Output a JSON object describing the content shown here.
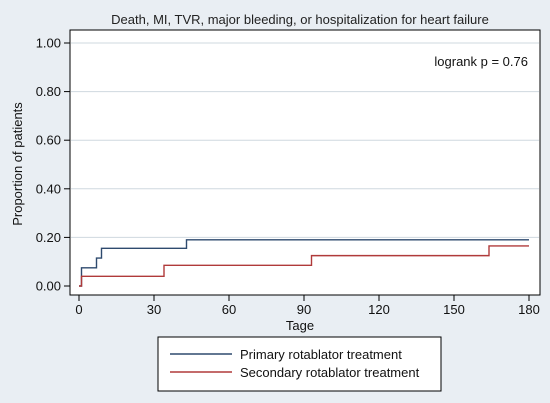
{
  "chart_data": {
    "type": "line",
    "step": true,
    "title": "Death, MI, TVR, major bleeding, or hospitalization for heart failure",
    "annotation": "logrank p = 0.76",
    "xlabel": "Tage",
    "ylabel": "Proportion of patients",
    "xlim": [
      0,
      180
    ],
    "ylim": [
      0,
      1.0
    ],
    "xticks": [
      0,
      30,
      60,
      90,
      120,
      150,
      180
    ],
    "xtick_labels": [
      "0",
      "30",
      "60",
      "90",
      "120",
      "150",
      "180"
    ],
    "yticks": [
      0,
      0.2,
      0.4,
      0.6,
      0.8,
      1.0
    ],
    "ytick_labels": [
      "0.00",
      "0.20",
      "0.40",
      "0.60",
      "0.80",
      "1.00"
    ],
    "grid": "horizontal",
    "legend_position": "bottom",
    "series": [
      {
        "name": "Primary rotablator treatment",
        "color": "#2e4a6e",
        "x": [
          0,
          1,
          7,
          9,
          43,
          180
        ],
        "y": [
          0,
          0.075,
          0.115,
          0.155,
          0.19,
          0.19
        ]
      },
      {
        "name": "Secondary rotablator treatment",
        "color": "#b03a3a",
        "x": [
          0,
          1,
          34,
          93,
          164,
          180
        ],
        "y": [
          0,
          0.04,
          0.085,
          0.125,
          0.165,
          0.165
        ]
      }
    ]
  }
}
